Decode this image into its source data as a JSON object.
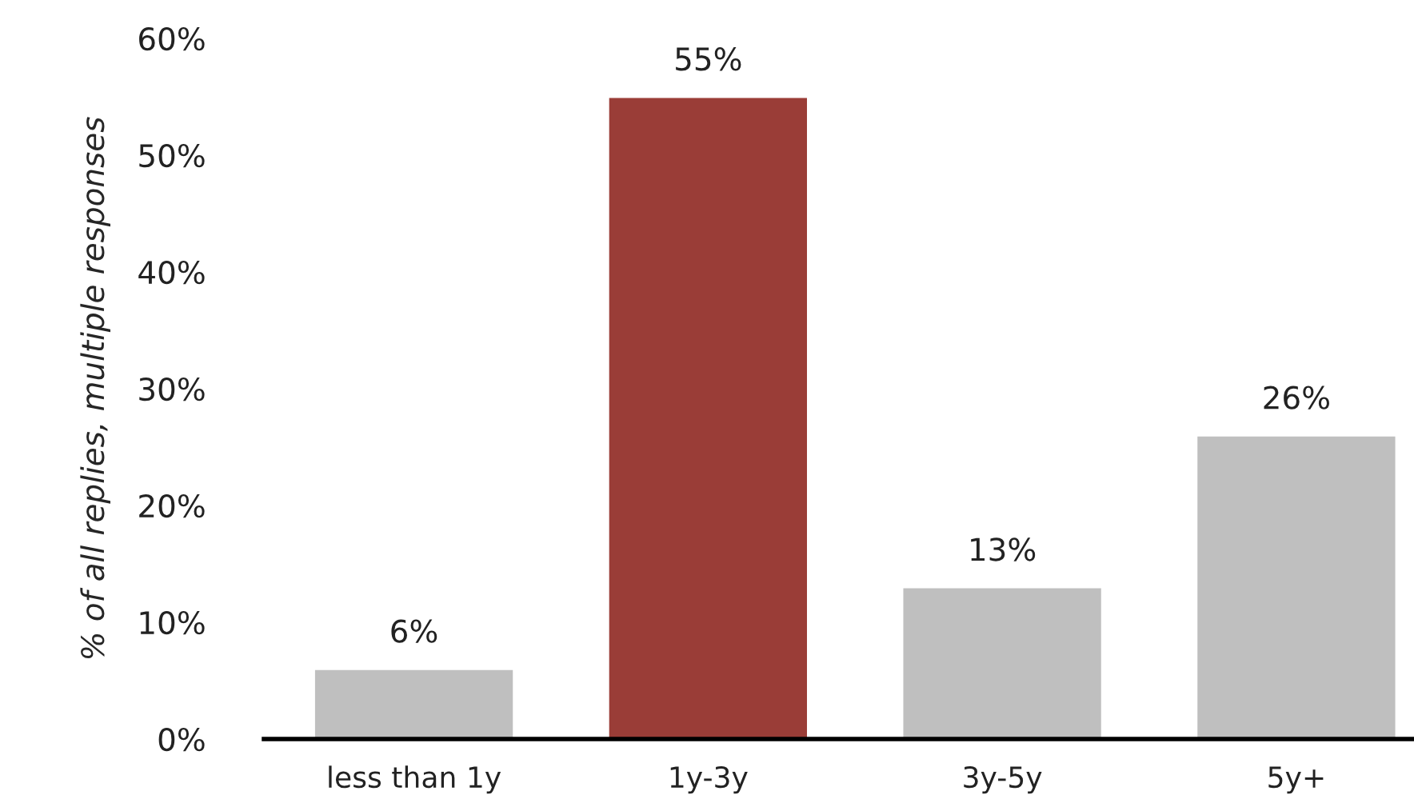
{
  "chart_data": {
    "type": "bar",
    "ylabel": "% of all replies, multiple responses",
    "categories": [
      "less than 1y",
      "1y-3y",
      "3y-5y",
      "5y+"
    ],
    "values": [
      6,
      55,
      13,
      26
    ],
    "colors": [
      "#bfbfbf",
      "#9a3d37",
      "#bfbfbf",
      "#bfbfbf"
    ],
    "value_labels": [
      "6%",
      "55%",
      "13%",
      "26%"
    ],
    "ylim": [
      0,
      60
    ],
    "yticks": [
      {
        "value": 0,
        "label": "0%"
      },
      {
        "value": 10,
        "label": "10%"
      },
      {
        "value": 20,
        "label": "20%"
      },
      {
        "value": 30,
        "label": "30%"
      },
      {
        "value": 40,
        "label": "40%"
      },
      {
        "value": 50,
        "label": "50%"
      },
      {
        "value": 60,
        "label": "60%"
      }
    ]
  }
}
